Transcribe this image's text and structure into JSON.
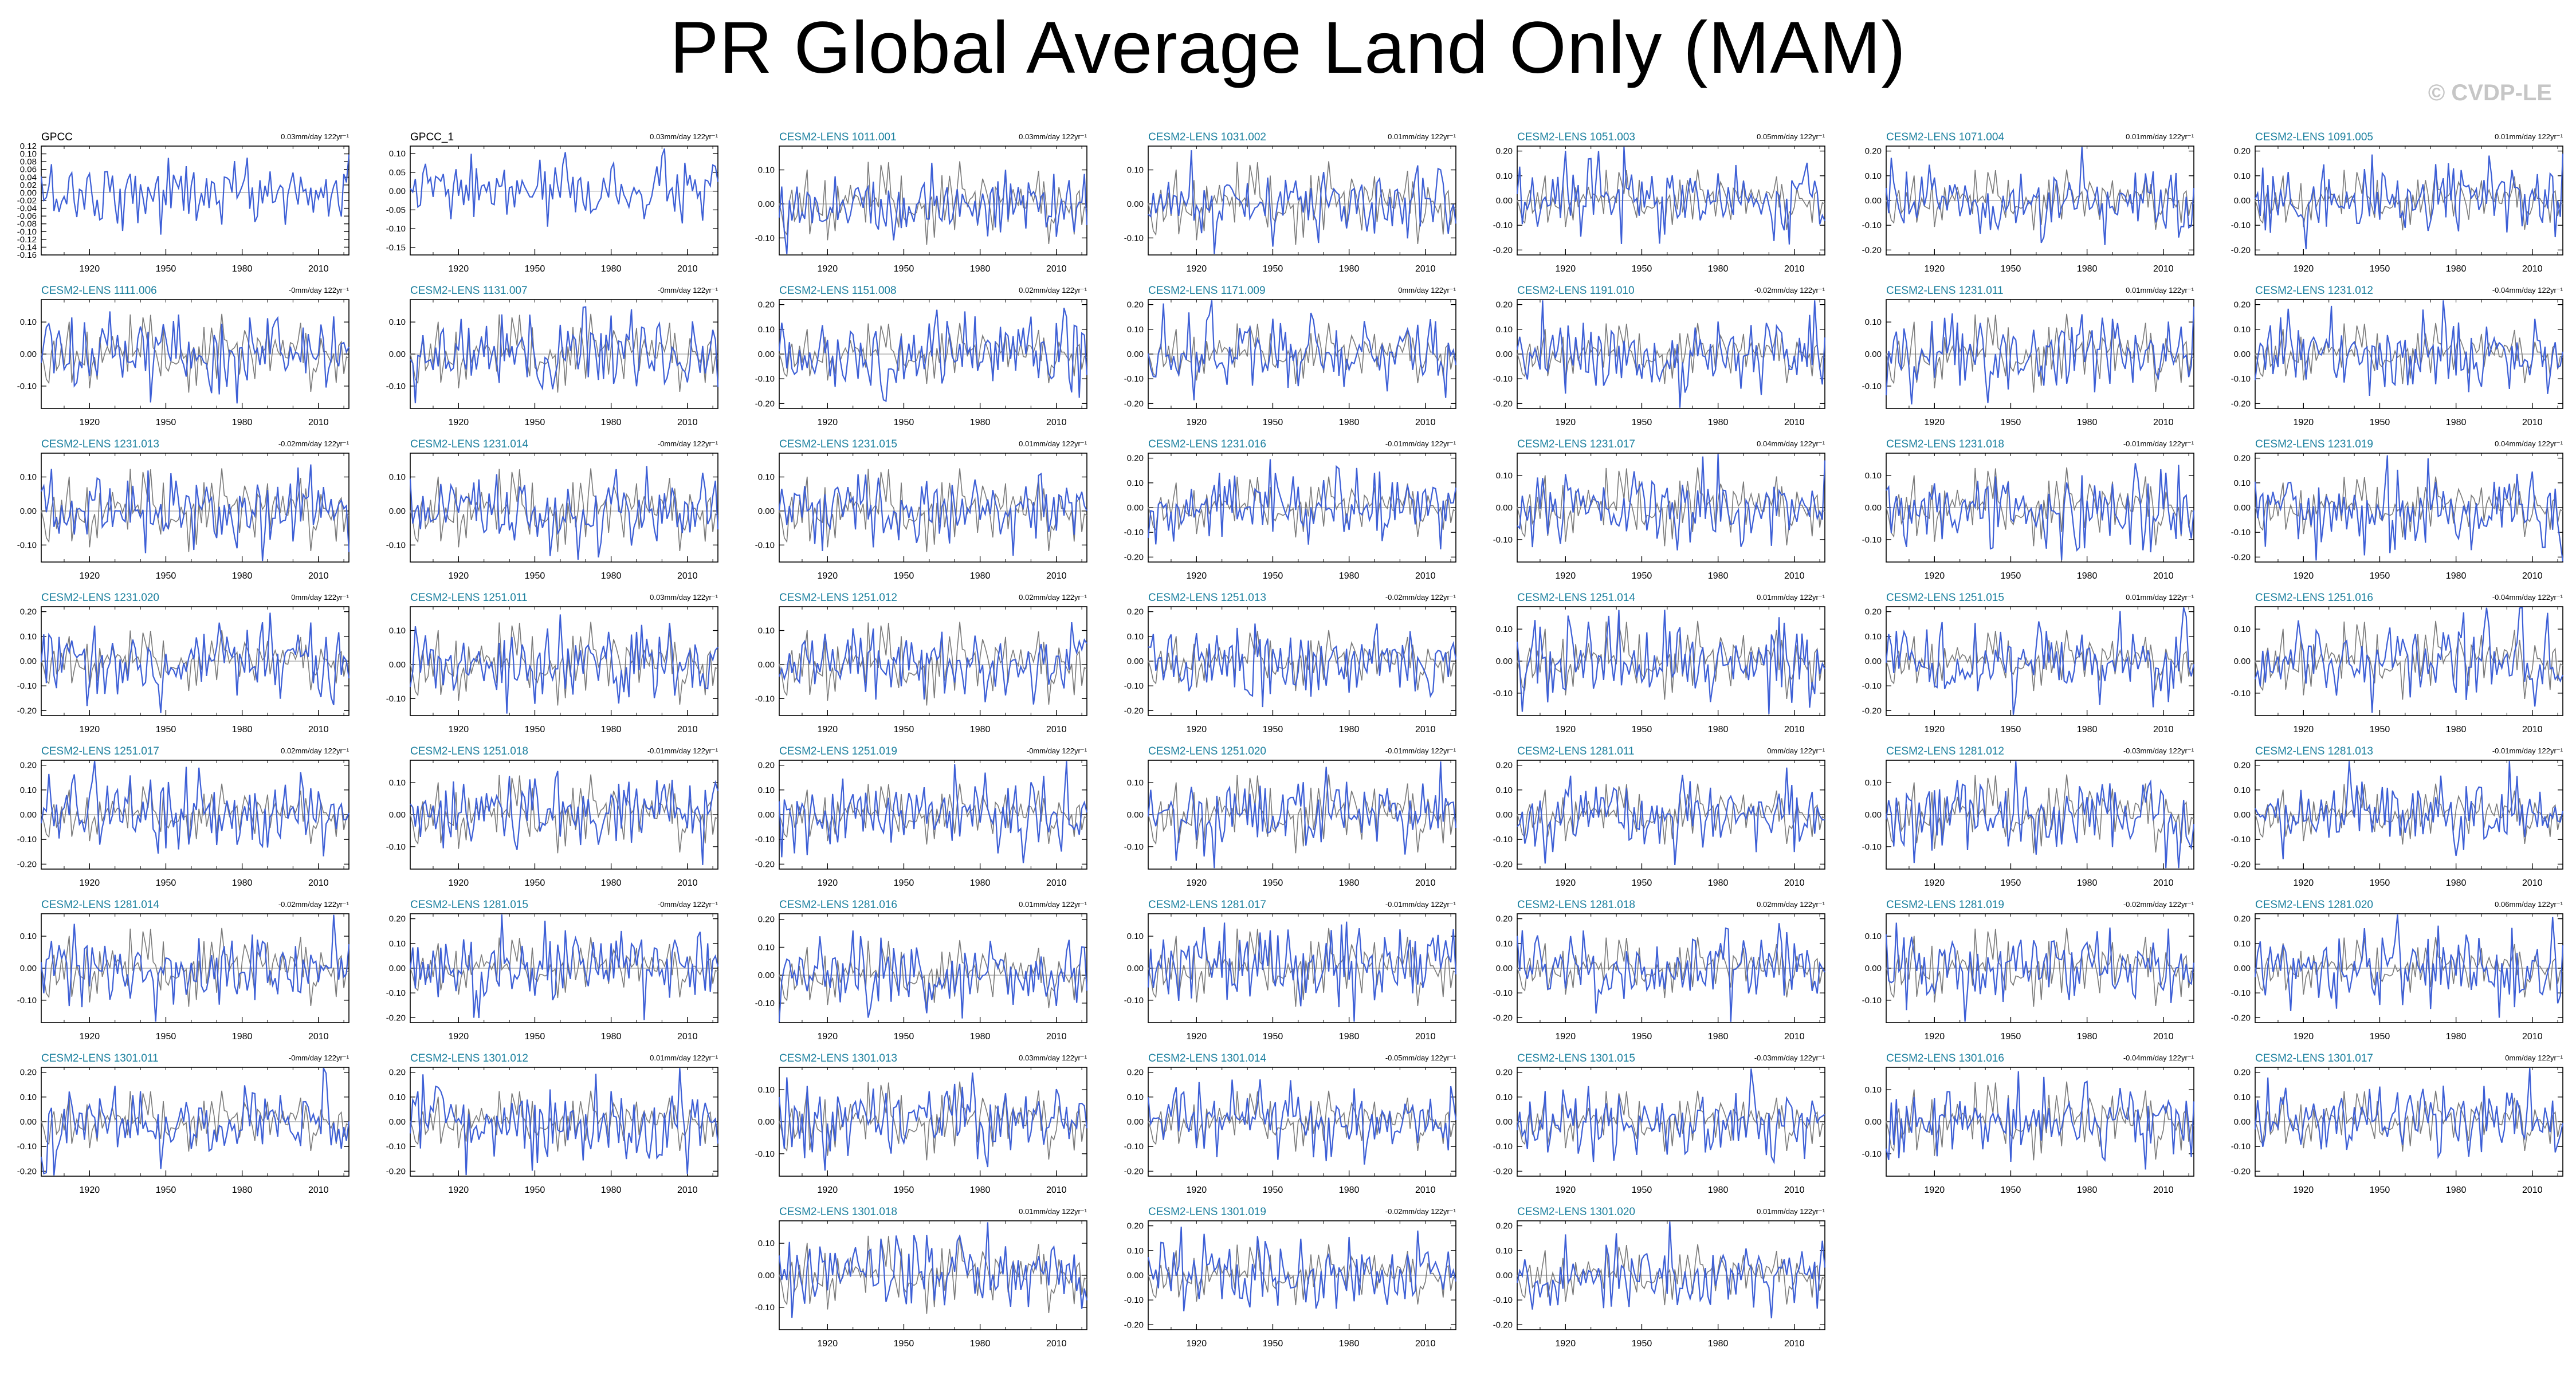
{
  "title": "PR Global Average Land Only (MAM)",
  "credit": "© CVDP-LE",
  "colors": {
    "member": "#3d5fd6",
    "obs": "#7a7a7a",
    "title_obs": "#000000",
    "title_model": "#1a7f9e"
  },
  "chart_data": {
    "type": "line",
    "x_range": [
      1901,
      2022
    ],
    "x_ticks": [
      "1920",
      "1950",
      "1980",
      "2010"
    ],
    "panels": [
      {
        "name": "GPCC",
        "trend": "0.03mm/day 122yr⁻¹",
        "ylim": [
          -0.16,
          0.12
        ],
        "yticks": [
          "0.12",
          "0.10",
          "0.08",
          "0.06",
          "0.04",
          "0.02",
          "0.00",
          "-0.02",
          "-0.04",
          "-0.06",
          "-0.08",
          "-0.10",
          "-0.12",
          "-0.14",
          "-0.16"
        ],
        "obs": true
      },
      {
        "name": "GPCC_1",
        "trend": "0.03mm/day 122yr⁻¹",
        "ylim": [
          -0.17,
          0.12
        ],
        "yticks": [
          "0.10",
          "0.05",
          "0.00",
          "-0.05",
          "-0.10",
          "-0.15"
        ],
        "obs": true
      },
      {
        "name": "CESM2-LENS 1011.001",
        "trend": "0.03mm/day 122yr⁻¹",
        "ylim": [
          -0.15,
          0.17
        ],
        "yticks": [
          "0.10",
          "0.00",
          "-0.10"
        ]
      },
      {
        "name": "CESM2-LENS 1031.002",
        "trend": "0.01mm/day 122yr⁻¹",
        "ylim": [
          -0.15,
          0.17
        ],
        "yticks": [
          "0.10",
          "0.00",
          "-0.10"
        ]
      },
      {
        "name": "CESM2-LENS 1051.003",
        "trend": "0.05mm/day 122yr⁻¹",
        "ylim": [
          -0.22,
          0.22
        ],
        "yticks": [
          "0.20",
          "0.10",
          "0.00",
          "-0.10",
          "-0.20"
        ]
      },
      {
        "name": "CESM2-LENS 1071.004",
        "trend": "0.01mm/day 122yr⁻¹",
        "ylim": [
          -0.22,
          0.22
        ],
        "yticks": [
          "0.20",
          "0.10",
          "0.00",
          "-0.10",
          "-0.20"
        ]
      },
      {
        "name": "CESM2-LENS 1091.005",
        "trend": "0.01mm/day 122yr⁻¹",
        "ylim": [
          -0.22,
          0.22
        ],
        "yticks": [
          "0.20",
          "0.10",
          "0.00",
          "-0.10",
          "-0.20"
        ]
      },
      {
        "name": "CESM2-LENS 1111.006",
        "trend": "-0mm/day 122yr⁻¹",
        "ylim": [
          -0.17,
          0.17
        ],
        "yticks": [
          "0.10",
          "0.00",
          "-0.10"
        ]
      },
      {
        "name": "CESM2-LENS 1131.007",
        "trend": "-0mm/day 122yr⁻¹",
        "ylim": [
          -0.17,
          0.17
        ],
        "yticks": [
          "0.10",
          "0.00",
          "-0.10"
        ]
      },
      {
        "name": "CESM2-LENS 1151.008",
        "trend": "0.02mm/day 122yr⁻¹",
        "ylim": [
          -0.22,
          0.22
        ],
        "yticks": [
          "0.20",
          "0.10",
          "0.00",
          "-0.10",
          "-0.20"
        ]
      },
      {
        "name": "CESM2-LENS 1171.009",
        "trend": "0mm/day 122yr⁻¹",
        "ylim": [
          -0.22,
          0.22
        ],
        "yticks": [
          "0.20",
          "0.10",
          "0.00",
          "-0.10",
          "-0.20"
        ]
      },
      {
        "name": "CESM2-LENS 1191.010",
        "trend": "-0.02mm/day 122yr⁻¹",
        "ylim": [
          -0.22,
          0.22
        ],
        "yticks": [
          "0.20",
          "0.10",
          "0.00",
          "-0.10",
          "-0.20"
        ]
      },
      {
        "name": "CESM2-LENS 1231.011",
        "trend": "0.01mm/day 122yr⁻¹",
        "ylim": [
          -0.17,
          0.17
        ],
        "yticks": [
          "0.10",
          "0.00",
          "-0.10"
        ]
      },
      {
        "name": "CESM2-LENS 1231.012",
        "trend": "-0.04mm/day 122yr⁻¹",
        "ylim": [
          -0.22,
          0.22
        ],
        "yticks": [
          "0.20",
          "0.10",
          "0.00",
          "-0.10",
          "-0.20"
        ]
      },
      {
        "name": "CESM2-LENS 1231.013",
        "trend": "-0.02mm/day 122yr⁻¹",
        "ylim": [
          -0.15,
          0.17
        ],
        "yticks": [
          "0.10",
          "0.00",
          "-0.10"
        ]
      },
      {
        "name": "CESM2-LENS 1231.014",
        "trend": "-0mm/day 122yr⁻¹",
        "ylim": [
          -0.15,
          0.17
        ],
        "yticks": [
          "0.10",
          "0.00",
          "-0.10"
        ]
      },
      {
        "name": "CESM2-LENS 1231.015",
        "trend": "0.01mm/day 122yr⁻¹",
        "ylim": [
          -0.15,
          0.17
        ],
        "yticks": [
          "0.10",
          "0.00",
          "-0.10"
        ]
      },
      {
        "name": "CESM2-LENS 1231.016",
        "trend": "-0.01mm/day 122yr⁻¹",
        "ylim": [
          -0.22,
          0.22
        ],
        "yticks": [
          "0.20",
          "0.10",
          "0.00",
          "-0.10",
          "-0.20"
        ]
      },
      {
        "name": "CESM2-LENS 1231.017",
        "trend": "0.04mm/day 122yr⁻¹",
        "ylim": [
          -0.17,
          0.17
        ],
        "yticks": [
          "0.10",
          "0.00",
          "-0.10"
        ]
      },
      {
        "name": "CESM2-LENS 1231.018",
        "trend": "-0.01mm/day 122yr⁻¹",
        "ylim": [
          -0.17,
          0.17
        ],
        "yticks": [
          "0.10",
          "0.00",
          "-0.10"
        ]
      },
      {
        "name": "CESM2-LENS 1231.019",
        "trend": "0.04mm/day 122yr⁻¹",
        "ylim": [
          -0.22,
          0.22
        ],
        "yticks": [
          "0.20",
          "0.10",
          "0.00",
          "-0.10",
          "-0.20"
        ]
      },
      {
        "name": "CESM2-LENS 1231.020",
        "trend": "0mm/day 122yr⁻¹",
        "ylim": [
          -0.22,
          0.22
        ],
        "yticks": [
          "0.20",
          "0.10",
          "0.00",
          "-0.10",
          "-0.20"
        ]
      },
      {
        "name": "CESM2-LENS 1251.011",
        "trend": "0.03mm/day 122yr⁻¹",
        "ylim": [
          -0.15,
          0.17
        ],
        "yticks": [
          "0.10",
          "0.00",
          "-0.10"
        ]
      },
      {
        "name": "CESM2-LENS 1251.012",
        "trend": "0.02mm/day 122yr⁻¹",
        "ylim": [
          -0.15,
          0.17
        ],
        "yticks": [
          "0.10",
          "0.00",
          "-0.10"
        ]
      },
      {
        "name": "CESM2-LENS 1251.013",
        "trend": "-0.02mm/day 122yr⁻¹",
        "ylim": [
          -0.22,
          0.22
        ],
        "yticks": [
          "0.20",
          "0.10",
          "0.00",
          "-0.10",
          "-0.20"
        ]
      },
      {
        "name": "CESM2-LENS 1251.014",
        "trend": "0.01mm/day 122yr⁻¹",
        "ylim": [
          -0.17,
          0.17
        ],
        "yticks": [
          "0.10",
          "0.00",
          "-0.10"
        ]
      },
      {
        "name": "CESM2-LENS 1251.015",
        "trend": "0.01mm/day 122yr⁻¹",
        "ylim": [
          -0.22,
          0.22
        ],
        "yticks": [
          "0.20",
          "0.10",
          "0.00",
          "-0.10",
          "-0.20"
        ]
      },
      {
        "name": "CESM2-LENS 1251.016",
        "trend": "-0.04mm/day 122yr⁻¹",
        "ylim": [
          -0.17,
          0.17
        ],
        "yticks": [
          "0.10",
          "0.00",
          "-0.10"
        ]
      },
      {
        "name": "CESM2-LENS 1251.017",
        "trend": "0.02mm/day 122yr⁻¹",
        "ylim": [
          -0.22,
          0.22
        ],
        "yticks": [
          "0.20",
          "0.10",
          "0.00",
          "-0.10",
          "-0.20"
        ]
      },
      {
        "name": "CESM2-LENS 1251.018",
        "trend": "-0.01mm/day 122yr⁻¹",
        "ylim": [
          -0.17,
          0.17
        ],
        "yticks": [
          "0.10",
          "0.00",
          "-0.10"
        ]
      },
      {
        "name": "CESM2-LENS 1251.019",
        "trend": "-0mm/day 122yr⁻¹",
        "ylim": [
          -0.22,
          0.22
        ],
        "yticks": [
          "0.20",
          "0.10",
          "0.00",
          "-0.10",
          "-0.20"
        ]
      },
      {
        "name": "CESM2-LENS 1251.020",
        "trend": "-0.01mm/day 122yr⁻¹",
        "ylim": [
          -0.17,
          0.17
        ],
        "yticks": [
          "0.10",
          "0.00",
          "-0.10"
        ]
      },
      {
        "name": "CESM2-LENS 1281.011",
        "trend": "0mm/day 122yr⁻¹",
        "ylim": [
          -0.22,
          0.22
        ],
        "yticks": [
          "0.20",
          "0.10",
          "0.00",
          "-0.10",
          "-0.20"
        ]
      },
      {
        "name": "CESM2-LENS 1281.012",
        "trend": "-0.03mm/day 122yr⁻¹",
        "ylim": [
          -0.17,
          0.17
        ],
        "yticks": [
          "0.10",
          "0.00",
          "-0.10"
        ]
      },
      {
        "name": "CESM2-LENS 1281.013",
        "trend": "-0.01mm/day 122yr⁻¹",
        "ylim": [
          -0.22,
          0.22
        ],
        "yticks": [
          "0.20",
          "0.10",
          "0.00",
          "-0.10",
          "-0.20"
        ]
      },
      {
        "name": "CESM2-LENS 1281.014",
        "trend": "-0.02mm/day 122yr⁻¹",
        "ylim": [
          -0.17,
          0.17
        ],
        "yticks": [
          "0.10",
          "0.00",
          "-0.10"
        ]
      },
      {
        "name": "CESM2-LENS 1281.015",
        "trend": "-0mm/day 122yr⁻¹",
        "ylim": [
          -0.22,
          0.22
        ],
        "yticks": [
          "0.20",
          "0.10",
          "0.00",
          "-0.10",
          "-0.20"
        ]
      },
      {
        "name": "CESM2-LENS 1281.016",
        "trend": "0.01mm/day 122yr⁻¹",
        "ylim": [
          -0.17,
          0.22
        ],
        "yticks": [
          "0.20",
          "0.10",
          "0.00",
          "-0.10"
        ]
      },
      {
        "name": "CESM2-LENS 1281.017",
        "trend": "-0.01mm/day 122yr⁻¹",
        "ylim": [
          -0.17,
          0.17
        ],
        "yticks": [
          "0.10",
          "0.00",
          "-0.10"
        ]
      },
      {
        "name": "CESM2-LENS 1281.018",
        "trend": "0.02mm/day 122yr⁻¹",
        "ylim": [
          -0.22,
          0.22
        ],
        "yticks": [
          "0.20",
          "0.10",
          "0.00",
          "-0.10",
          "-0.20"
        ]
      },
      {
        "name": "CESM2-LENS 1281.019",
        "trend": "-0.02mm/day 122yr⁻¹",
        "ylim": [
          -0.17,
          0.17
        ],
        "yticks": [
          "0.10",
          "0.00",
          "-0.10"
        ]
      },
      {
        "name": "CESM2-LENS 1281.020",
        "trend": "0.06mm/day 122yr⁻¹",
        "ylim": [
          -0.22,
          0.22
        ],
        "yticks": [
          "0.20",
          "0.10",
          "0.00",
          "-0.10",
          "-0.20"
        ]
      },
      {
        "name": "CESM2-LENS 1301.011",
        "trend": "-0mm/day 122yr⁻¹",
        "ylim": [
          -0.22,
          0.22
        ],
        "yticks": [
          "0.20",
          "0.10",
          "0.00",
          "-0.10",
          "-0.20"
        ]
      },
      {
        "name": "CESM2-LENS 1301.012",
        "trend": "0.01mm/day 122yr⁻¹",
        "ylim": [
          -0.22,
          0.22
        ],
        "yticks": [
          "0.20",
          "0.10",
          "0.00",
          "-0.10",
          "-0.20"
        ]
      },
      {
        "name": "CESM2-LENS 1301.013",
        "trend": "0.03mm/day 122yr⁻¹",
        "ylim": [
          -0.17,
          0.17
        ],
        "yticks": [
          "0.10",
          "0.00",
          "-0.10"
        ]
      },
      {
        "name": "CESM2-LENS 1301.014",
        "trend": "-0.05mm/day 122yr⁻¹",
        "ylim": [
          -0.22,
          0.22
        ],
        "yticks": [
          "0.20",
          "0.10",
          "0.00",
          "-0.10",
          "-0.20"
        ]
      },
      {
        "name": "CESM2-LENS 1301.015",
        "trend": "-0.03mm/day 122yr⁻¹",
        "ylim": [
          -0.22,
          0.22
        ],
        "yticks": [
          "0.20",
          "0.10",
          "0.00",
          "-0.10",
          "-0.20"
        ]
      },
      {
        "name": "CESM2-LENS 1301.016",
        "trend": "-0.04mm/day 122yr⁻¹",
        "ylim": [
          -0.17,
          0.17
        ],
        "yticks": [
          "0.10",
          "0.00",
          "-0.10"
        ]
      },
      {
        "name": "CESM2-LENS 1301.017",
        "trend": "0mm/day 122yr⁻¹",
        "ylim": [
          -0.22,
          0.22
        ],
        "yticks": [
          "0.20",
          "0.10",
          "0.00",
          "-0.10",
          "-0.20"
        ]
      },
      {
        "name": "CESM2-LENS 1301.018",
        "trend": "0.01mm/day 122yr⁻¹",
        "ylim": [
          -0.17,
          0.17
        ],
        "yticks": [
          "0.10",
          "0.00",
          "-0.10"
        ]
      },
      {
        "name": "CESM2-LENS 1301.019",
        "trend": "-0.02mm/day 122yr⁻¹",
        "ylim": [
          -0.22,
          0.22
        ],
        "yticks": [
          "0.20",
          "0.10",
          "0.00",
          "-0.10",
          "-0.20"
        ]
      },
      {
        "name": "CESM2-LENS 1301.020",
        "trend": "0.01mm/day 122yr⁻¹",
        "ylim": [
          -0.22,
          0.22
        ],
        "yticks": [
          "0.20",
          "0.10",
          "0.00",
          "-0.10",
          "-0.20"
        ]
      }
    ]
  }
}
